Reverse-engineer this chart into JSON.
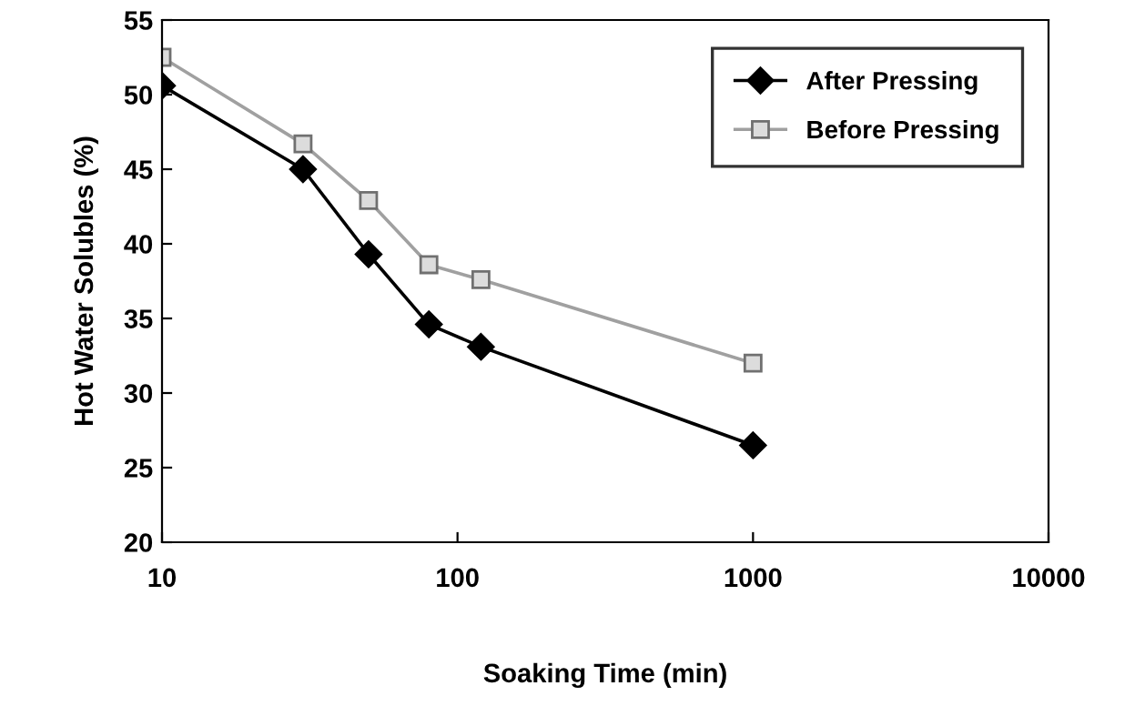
{
  "chart_data": {
    "type": "line",
    "xlabel": "Soaking Time (min)",
    "ylabel": "Hot Water Solubles (%)",
    "log": "x",
    "x": [
      10,
      30,
      50,
      80,
      120,
      1000
    ],
    "series": [
      {
        "name": "After Pressing",
        "color": "#000000",
        "values": [
          50.6,
          45.0,
          39.3,
          34.6,
          33.1,
          26.5
        ],
        "marker": "diamond"
      },
      {
        "name": "Before Pressing",
        "color": "#a0a0a0",
        "values": [
          52.5,
          46.7,
          42.9,
          38.6,
          37.6,
          32.0
        ],
        "marker": "square"
      }
    ],
    "xlim": [
      10,
      10000
    ],
    "xticks": [
      10,
      100,
      1000,
      10000
    ],
    "ylim": [
      20,
      55
    ],
    "yticks": [
      20,
      25,
      30,
      35,
      40,
      45,
      50,
      55
    ],
    "grid": false,
    "legend": "top right",
    "line_style": "solid"
  }
}
